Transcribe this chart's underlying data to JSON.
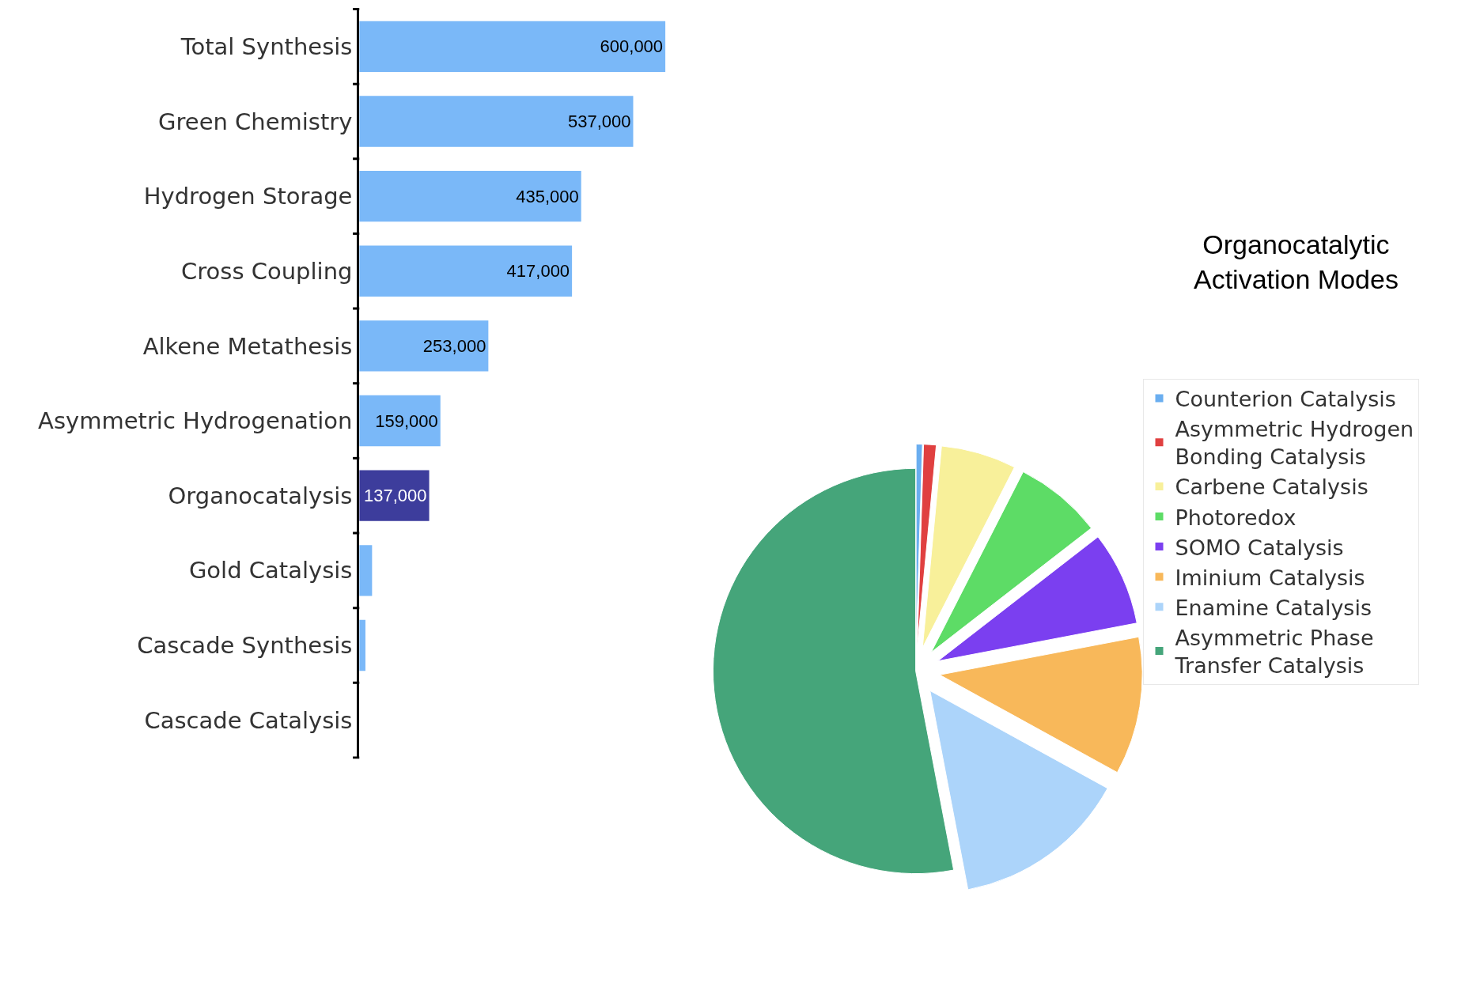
{
  "chart_data": [
    {
      "type": "bar",
      "orientation": "horizontal",
      "categories": [
        "Total Synthesis",
        "Green Chemistry",
        "Hydrogen Storage",
        "Cross Coupling",
        "Alkene Metathesis",
        "Asymmetric Hydrogenation",
        "Organocatalysis",
        "Gold Catalysis",
        "Cascade Synthesis",
        "Cascade Catalysis"
      ],
      "values": [
        600000,
        537000,
        435000,
        417000,
        253000,
        159000,
        137000,
        25000,
        12000,
        0
      ],
      "value_labels": [
        "600,000",
        "537,000",
        "435,000",
        "417,000",
        "253,000",
        "159,000",
        "137,000",
        null,
        null,
        null
      ],
      "colors": [
        "#7ab8f8",
        "#7ab8f8",
        "#7ab8f8",
        "#7ab8f8",
        "#7ab8f8",
        "#7ab8f8",
        "#3d3d9c",
        "#7ab8f8",
        "#7ab8f8",
        "#7ab8f8"
      ],
      "tick_labels": "y",
      "legend": false
    },
    {
      "type": "pie",
      "title": "Organocatalytic Activation Modes",
      "categories": [
        "Counterion Catalysis",
        "Asymmetric Hydrogen Bonding Catalysis",
        "Carbene Catalysis",
        "Photoredox",
        "SOMO Catalysis",
        "Iminium Catalysis",
        "Enamine Catalysis",
        "Asymmetric Phase Transfer Catalysis"
      ],
      "values": [
        0.5,
        1,
        6,
        7,
        7.5,
        11,
        14,
        53
      ],
      "colors": [
        "#6aaef0",
        "#e04040",
        "#f8f09a",
        "#5ddc66",
        "#7b3ff0",
        "#f8b85a",
        "#acd4fa",
        "#45a57a"
      ],
      "legend": "right"
    }
  ]
}
